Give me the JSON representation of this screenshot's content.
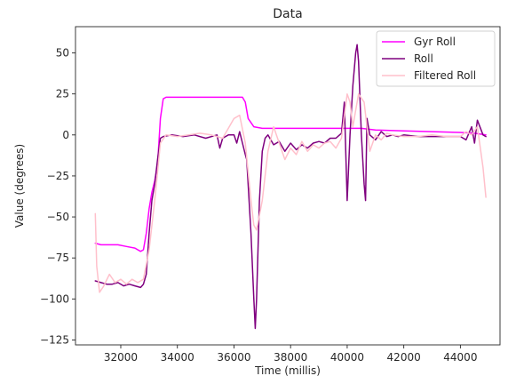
{
  "chart_data": {
    "type": "line",
    "title": "Data",
    "xlabel": "Time (millis)",
    "ylabel": "Value (degrees)",
    "xlim": [
      30400,
      45400
    ],
    "ylim": [
      -128,
      66
    ],
    "xticks": [
      32000,
      34000,
      36000,
      38000,
      40000,
      42000,
      44000
    ],
    "yticks": [
      50,
      25,
      0,
      -25,
      -50,
      -75,
      -100,
      -125
    ],
    "xtick_labels": [
      "32000",
      "34000",
      "36000",
      "38000",
      "40000",
      "42000",
      "44000"
    ],
    "ytick_labels": [
      "50",
      "25",
      "0",
      "−25",
      "−50",
      "−75",
      "−100",
      "−125"
    ],
    "grid": false,
    "legend_position": "top-right",
    "series": [
      {
        "name": "Gyr Roll",
        "color": "#ff00ff",
        "x": [
          31100,
          31300,
          31600,
          31900,
          32200,
          32500,
          32700,
          32800,
          32900,
          33000,
          33100,
          33200,
          33300,
          33400,
          33500,
          33600,
          33800,
          34200,
          35000,
          35800,
          36300,
          36400,
          36500,
          36700,
          37000,
          38000,
          39000,
          40000,
          40500,
          41000,
          42000,
          43000,
          44000,
          44500,
          44900
        ],
        "y": [
          -66,
          -67,
          -67,
          -67,
          -68,
          -69,
          -71,
          -70,
          -60,
          -45,
          -35,
          -28,
          -18,
          10,
          22,
          23,
          23,
          23,
          23,
          23,
          23,
          20,
          10,
          5,
          4,
          4,
          4,
          4,
          4,
          3,
          2.5,
          2,
          1.5,
          1,
          0
        ]
      },
      {
        "name": "Roll",
        "color": "#7f007f",
        "x": [
          31100,
          31300,
          31500,
          31700,
          31900,
          32100,
          32300,
          32500,
          32700,
          32800,
          32900,
          33000,
          33100,
          33200,
          33300,
          33400,
          33500,
          33800,
          34200,
          34600,
          35000,
          35400,
          35500,
          35600,
          35800,
          36000,
          36100,
          36200,
          36300,
          36400,
          36450,
          36500,
          36600,
          36700,
          36750,
          36800,
          36900,
          37000,
          37100,
          37200,
          37400,
          37600,
          37800,
          38000,
          38200,
          38400,
          38600,
          38800,
          39000,
          39200,
          39400,
          39600,
          39800,
          39900,
          40000,
          40100,
          40200,
          40300,
          40350,
          40400,
          40500,
          40600,
          40650,
          40700,
          40800,
          41000,
          41200,
          41400,
          41600,
          41800,
          42000,
          42500,
          43000,
          43500,
          44000,
          44200,
          44400,
          44500,
          44600,
          44800,
          44900
        ],
        "y": [
          -89,
          -90,
          -91,
          -91,
          -90,
          -92,
          -91,
          -92,
          -93,
          -91,
          -85,
          -60,
          -40,
          -30,
          -15,
          -2,
          -1,
          0,
          -1,
          0,
          -2,
          0,
          -8,
          -2,
          0,
          0,
          -5,
          2,
          -5,
          -12,
          -15,
          -30,
          -60,
          -100,
          -118,
          -100,
          -40,
          -10,
          -2,
          0,
          -6,
          -4,
          -10,
          -5,
          -9,
          -6,
          -8,
          -5,
          -4,
          -5,
          -2,
          -2,
          1,
          20,
          -40,
          0,
          30,
          50,
          55,
          45,
          0,
          -30,
          -40,
          10,
          0,
          -3,
          2,
          -1,
          0,
          -1,
          0,
          -1,
          -1,
          -1,
          -1,
          -3,
          5,
          -5,
          9,
          0,
          -1
        ]
      },
      {
        "name": "Filtered Roll",
        "color": "#ffc0cb",
        "x": [
          31100,
          31150,
          31250,
          31400,
          31600,
          31800,
          32000,
          32200,
          32400,
          32600,
          32800,
          33000,
          33200,
          33400,
          33600,
          34000,
          34400,
          34800,
          35200,
          35600,
          36000,
          36200,
          36400,
          36600,
          36700,
          36800,
          37000,
          37200,
          37400,
          37600,
          37800,
          38000,
          38200,
          38400,
          38600,
          38800,
          39000,
          39200,
          39400,
          39600,
          39800,
          40000,
          40100,
          40200,
          40400,
          40600,
          40800,
          41000,
          41200,
          41400,
          41600,
          42000,
          42500,
          43000,
          43500,
          44000,
          44200,
          44400,
          44600,
          44800,
          44900
        ],
        "y": [
          -48,
          -80,
          -96,
          -92,
          -85,
          -90,
          -88,
          -91,
          -88,
          -90,
          -88,
          -70,
          -40,
          -5,
          0,
          -1,
          0,
          1,
          0,
          -2,
          10,
          12,
          -5,
          -40,
          -55,
          -58,
          -40,
          -10,
          5,
          -5,
          -15,
          -8,
          -12,
          -4,
          -10,
          -6,
          -8,
          -5,
          -4,
          -8,
          -2,
          25,
          20,
          5,
          25,
          20,
          -10,
          0,
          -3,
          1,
          0,
          -1,
          -1,
          0,
          -1,
          -1,
          2,
          0,
          5,
          -20,
          -38
        ]
      }
    ]
  }
}
